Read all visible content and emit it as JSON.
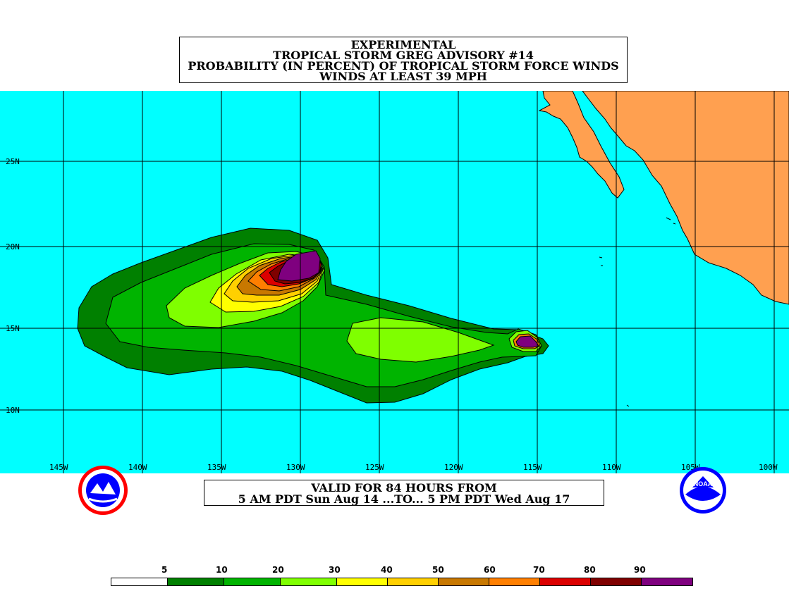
{
  "title": {
    "line1": "EXPERIMENTAL",
    "line2": "TROPICAL STORM GREG ADVISORY #14",
    "line3": "PROBABILITY (IN PERCENT) OF TROPICAL STORM FORCE WINDS",
    "line4": "WINDS AT LEAST 39 MPH"
  },
  "valid": {
    "line1": "VALID FOR 84 HOURS FROM",
    "line2": "5 AM PDT Sun Aug 14 ...TO... 5 PM PDT Wed Aug 17"
  },
  "axes": {
    "lat_labels": [
      "25N",
      "20N",
      "15N",
      "10N"
    ],
    "lon_labels": [
      "145W",
      "140W",
      "135W",
      "130W",
      "125W",
      "120W",
      "115W",
      "110W",
      "105W",
      "100W"
    ]
  },
  "legend": {
    "labels": [
      "5",
      "10",
      "20",
      "30",
      "40",
      "50",
      "60",
      "70",
      "80",
      "90"
    ],
    "colors": [
      "#ffffff",
      "#008000",
      "#00b400",
      "#7fff00",
      "#ffff00",
      "#ffd000",
      "#c87800",
      "#ff7f00",
      "#dc0000",
      "#7f0000",
      "#7f007f"
    ]
  },
  "map_colors": {
    "ocean": "#00ffff",
    "land": "#ffa050"
  },
  "logos": {
    "left": "nws-logo",
    "right": "noaa-logo",
    "noaa_text": "NOAA"
  }
}
